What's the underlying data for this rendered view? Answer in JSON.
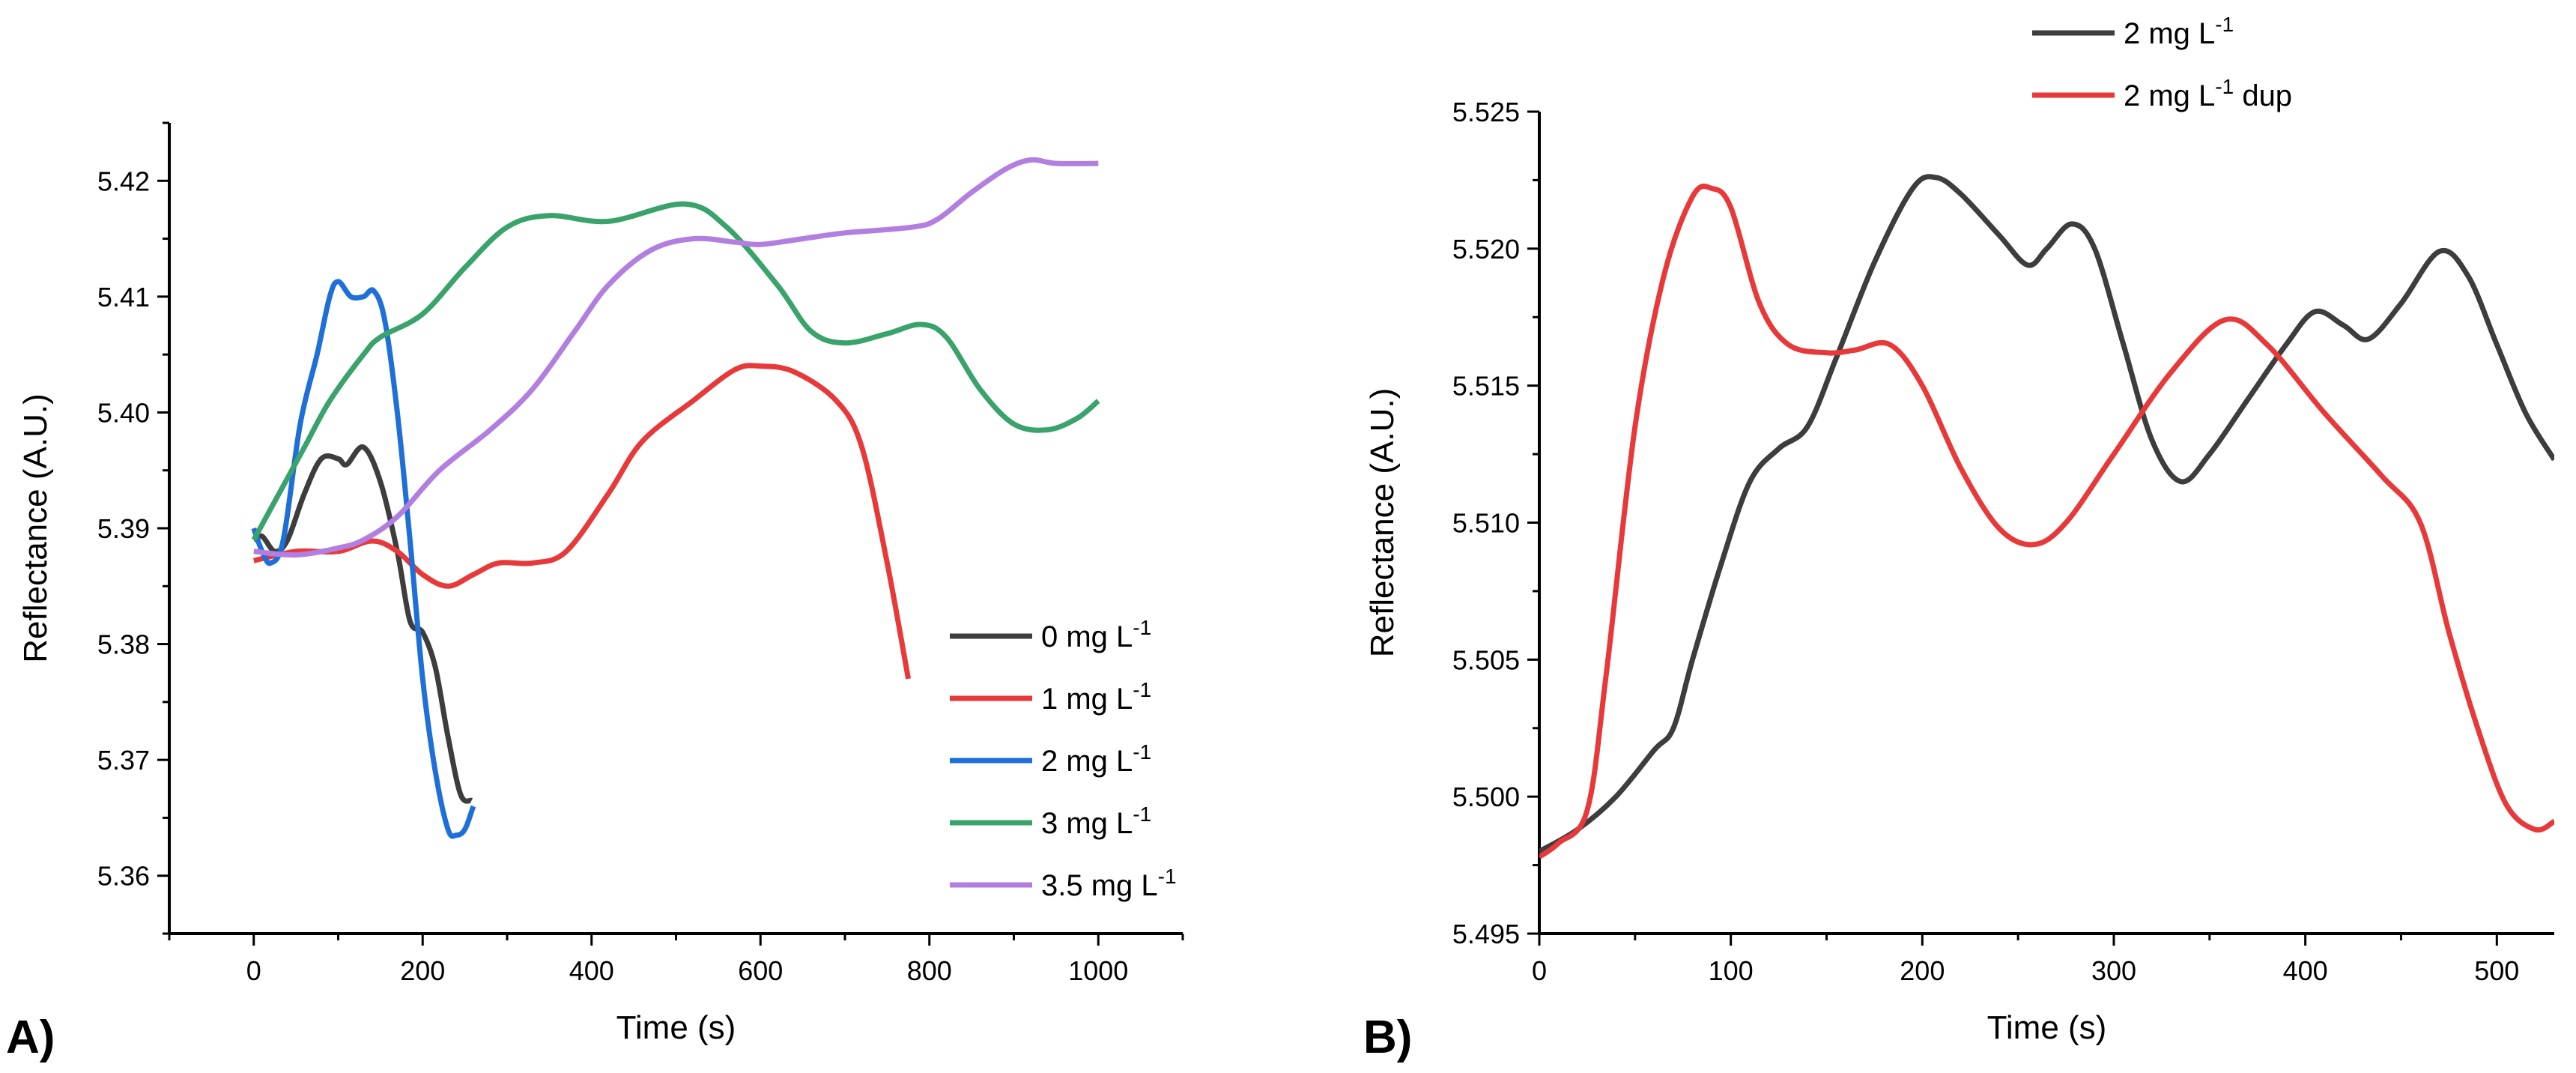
{
  "chart_data": [
    {
      "panel_label": "A)",
      "type": "line",
      "xlabel": "Time (s)",
      "ylabel": "Reflectance (A.U.)",
      "xlim": [
        -100,
        1100
      ],
      "ylim": [
        5.355,
        5.425
      ],
      "x_ticks": [
        0,
        200,
        400,
        600,
        800,
        1000
      ],
      "x_tick_labels": [
        "0",
        "200",
        "400",
        "600",
        "800",
        "1000"
      ],
      "y_ticks": [
        5.36,
        5.37,
        5.38,
        5.39,
        5.4,
        5.41,
        5.42
      ],
      "y_tick_labels": [
        "5.36",
        "5.37",
        "5.38",
        "5.39",
        "5.40",
        "5.41",
        "5.42"
      ],
      "grid": false,
      "legend_position": "bottom-right",
      "series": [
        {
          "name": "0 mg L-1",
          "color": "#3d3d3d",
          "x": [
            0,
            10,
            25,
            40,
            60,
            80,
            100,
            110,
            130,
            150,
            170,
            185,
            200,
            215,
            230,
            245,
            258
          ],
          "y": [
            5.389,
            5.3893,
            5.388,
            5.389,
            5.393,
            5.396,
            5.396,
            5.3955,
            5.397,
            5.394,
            5.388,
            5.382,
            5.381,
            5.378,
            5.372,
            5.367,
            5.3665
          ]
        },
        {
          "name": "1 mg L-1",
          "color": "#e8393a",
          "x": [
            0,
            50,
            100,
            140,
            170,
            200,
            230,
            260,
            290,
            330,
            370,
            420,
            460,
            520,
            570,
            600,
            640,
            690,
            720,
            750,
            775
          ],
          "y": [
            5.3872,
            5.388,
            5.388,
            5.3889,
            5.388,
            5.386,
            5.385,
            5.386,
            5.387,
            5.387,
            5.388,
            5.393,
            5.3975,
            5.401,
            5.4037,
            5.404,
            5.4035,
            5.401,
            5.397,
            5.387,
            5.377
          ]
        },
        {
          "name": "2 mg L-1",
          "color": "#1f6fd8",
          "x": [
            0,
            10,
            20,
            35,
            55,
            75,
            90,
            100,
            115,
            130,
            142,
            155,
            170,
            185,
            200,
            215,
            230,
            240,
            250,
            260
          ],
          "y": [
            5.39,
            5.388,
            5.387,
            5.389,
            5.399,
            5.405,
            5.41,
            5.4113,
            5.41,
            5.41,
            5.4105,
            5.408,
            5.4,
            5.389,
            5.377,
            5.369,
            5.364,
            5.3635,
            5.364,
            5.366
          ]
        },
        {
          "name": "3 mg L-1",
          "color": "#3aa36b",
          "x": [
            0,
            30,
            60,
            90,
            130,
            150,
            200,
            250,
            300,
            350,
            420,
            510,
            560,
            620,
            660,
            700,
            750,
            790,
            820,
            860,
            900,
            940,
            975,
            1000
          ],
          "y": [
            5.389,
            5.393,
            5.397,
            5.401,
            5.405,
            5.4065,
            5.4085,
            5.4125,
            5.416,
            5.417,
            5.4165,
            5.418,
            5.416,
            5.411,
            5.407,
            5.406,
            5.4068,
            5.4076,
            5.4065,
            5.402,
            5.399,
            5.3985,
            5.3995,
            5.401
          ]
        },
        {
          "name": "3.5 mg L-1",
          "color": "#b27ee0",
          "x": [
            0,
            50,
            100,
            130,
            170,
            220,
            280,
            330,
            380,
            420,
            470,
            520,
            570,
            600,
            650,
            700,
            780,
            810,
            850,
            890,
            920,
            950,
            1000
          ],
          "y": [
            5.388,
            5.3877,
            5.3883,
            5.389,
            5.391,
            5.395,
            5.3985,
            5.402,
            5.407,
            5.411,
            5.414,
            5.415,
            5.4147,
            5.4145,
            5.415,
            5.4155,
            5.416,
            5.4167,
            5.419,
            5.421,
            5.4218,
            5.4215,
            5.4215
          ]
        }
      ]
    },
    {
      "panel_label": "B)",
      "type": "line",
      "xlabel": "Time (s)",
      "ylabel": "Reflectance (A.U.)",
      "xlim": [
        0,
        530
      ],
      "ylim": [
        5.495,
        5.525
      ],
      "x_ticks": [
        0,
        100,
        200,
        300,
        400,
        500
      ],
      "x_tick_labels": [
        "0",
        "100",
        "200",
        "300",
        "400",
        "500"
      ],
      "y_ticks": [
        5.495,
        5.5,
        5.505,
        5.51,
        5.515,
        5.52,
        5.525
      ],
      "y_tick_labels": [
        "5.495",
        "5.500",
        "5.505",
        "5.510",
        "5.515",
        "5.520",
        "5.525"
      ],
      "grid": false,
      "legend_position": "top-right",
      "series": [
        {
          "name": "2 mg L-1",
          "color": "#3d3d3d",
          "x": [
            0,
            20,
            40,
            60,
            70,
            80,
            95,
            110,
            125,
            140,
            155,
            175,
            195,
            207,
            220,
            240,
            255,
            265,
            278,
            290,
            305,
            320,
            335,
            350,
            370,
            390,
            405,
            420,
            433,
            450,
            470,
            485,
            500,
            515,
            530
          ],
          "y": [
            5.498,
            5.4988,
            5.5,
            5.5017,
            5.5025,
            5.505,
            5.5085,
            5.5115,
            5.5127,
            5.5135,
            5.516,
            5.5195,
            5.5222,
            5.5226,
            5.522,
            5.5205,
            5.5194,
            5.52,
            5.5209,
            5.52,
            5.5165,
            5.513,
            5.5115,
            5.5125,
            5.5145,
            5.5165,
            5.5177,
            5.5172,
            5.5167,
            5.518,
            5.5199,
            5.519,
            5.5165,
            5.514,
            5.5123
          ]
        },
        {
          "name": "2 mg L-1 dup",
          "color": "#e8393a",
          "x": [
            0,
            10,
            25,
            35,
            50,
            65,
            80,
            90,
            100,
            115,
            130,
            150,
            165,
            183,
            200,
            220,
            240,
            258,
            275,
            300,
            330,
            358,
            380,
            410,
            440,
            460,
            475,
            490,
            505,
            520,
            530
          ],
          "y": [
            5.4978,
            5.4983,
            5.4995,
            5.5045,
            5.5135,
            5.519,
            5.5219,
            5.5222,
            5.5215,
            5.518,
            5.5165,
            5.5162,
            5.5163,
            5.5165,
            5.515,
            5.512,
            5.5098,
            5.5092,
            5.51,
            5.5125,
            5.5155,
            5.5174,
            5.5165,
            5.514,
            5.5117,
            5.51,
            5.506,
            5.5025,
            5.4997,
            5.4988,
            5.4991
          ]
        }
      ]
    }
  ]
}
